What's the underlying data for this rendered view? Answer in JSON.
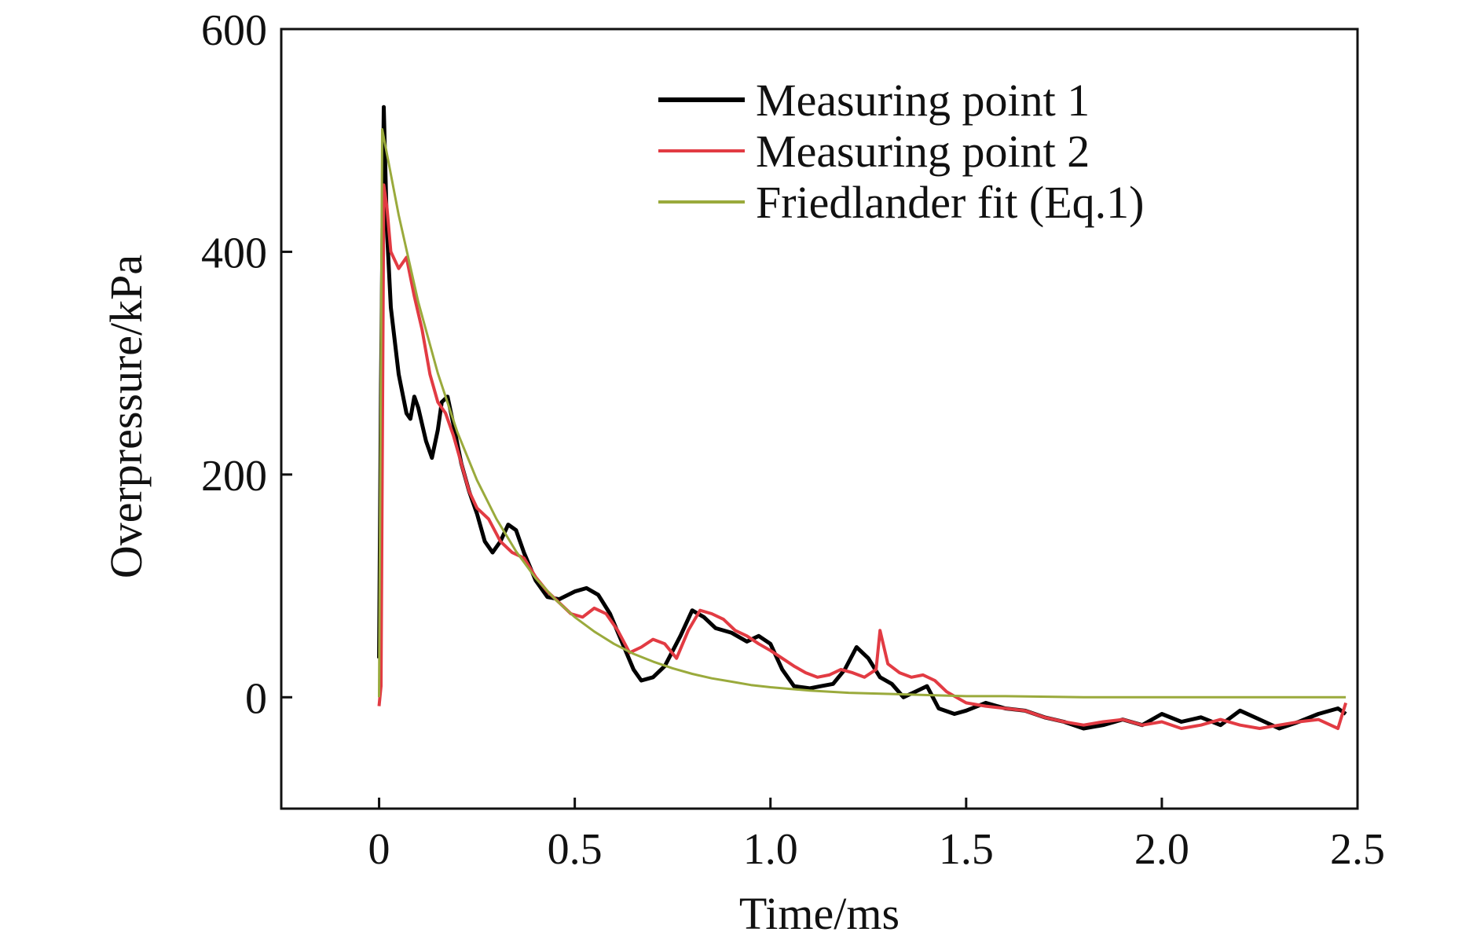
{
  "chart_data": {
    "type": "line",
    "title": "",
    "xlabel": "Time/ms",
    "ylabel": "Overpressure/kPa",
    "xlim": [
      -0.25,
      2.5
    ],
    "ylim": [
      -100,
      600
    ],
    "xticks": [
      0,
      0.5,
      1.0,
      1.5,
      2.0,
      2.5
    ],
    "xtick_labels": [
      "0",
      "0.5",
      "1.0",
      "1.5",
      "2.0",
      "2.5"
    ],
    "yticks": [
      0,
      200,
      400,
      600
    ],
    "ytick_labels": [
      "0",
      "200",
      "400",
      "600"
    ],
    "grid": false,
    "legend_position": "top-right",
    "series": [
      {
        "name": "Measuring point 1",
        "color": "#000000",
        "x": [
          0.0,
          0.005,
          0.012,
          0.02,
          0.03,
          0.05,
          0.07,
          0.08,
          0.09,
          0.1,
          0.12,
          0.135,
          0.15,
          0.16,
          0.175,
          0.19,
          0.21,
          0.23,
          0.25,
          0.27,
          0.29,
          0.31,
          0.33,
          0.35,
          0.37,
          0.4,
          0.43,
          0.46,
          0.5,
          0.53,
          0.56,
          0.59,
          0.62,
          0.65,
          0.67,
          0.7,
          0.73,
          0.77,
          0.8,
          0.83,
          0.86,
          0.9,
          0.94,
          0.97,
          1.0,
          1.03,
          1.06,
          1.1,
          1.13,
          1.16,
          1.19,
          1.22,
          1.25,
          1.28,
          1.31,
          1.34,
          1.37,
          1.4,
          1.43,
          1.47,
          1.5,
          1.55,
          1.6,
          1.65,
          1.7,
          1.75,
          1.8,
          1.85,
          1.9,
          1.95,
          2.0,
          2.05,
          2.1,
          2.15,
          2.2,
          2.25,
          2.3,
          2.35,
          2.4,
          2.45,
          2.47
        ],
        "y": [
          35,
          280,
          530,
          420,
          350,
          290,
          255,
          250,
          270,
          260,
          230,
          215,
          240,
          265,
          270,
          245,
          210,
          185,
          165,
          140,
          130,
          140,
          155,
          150,
          130,
          105,
          90,
          88,
          95,
          98,
          92,
          75,
          50,
          25,
          15,
          18,
          28,
          55,
          78,
          72,
          62,
          58,
          50,
          55,
          48,
          25,
          10,
          8,
          10,
          12,
          25,
          45,
          35,
          18,
          12,
          0,
          5,
          10,
          -10,
          -15,
          -12,
          -5,
          -10,
          -12,
          -18,
          -22,
          -28,
          -25,
          -20,
          -25,
          -15,
          -22,
          -18,
          -25,
          -12,
          -20,
          -28,
          -22,
          -15,
          -10,
          -15
        ]
      },
      {
        "name": "Measuring point 2",
        "color": "#e23b43",
        "x": [
          0.0,
          0.005,
          0.012,
          0.02,
          0.03,
          0.05,
          0.07,
          0.09,
          0.11,
          0.13,
          0.15,
          0.17,
          0.19,
          0.21,
          0.23,
          0.25,
          0.28,
          0.31,
          0.34,
          0.37,
          0.4,
          0.43,
          0.46,
          0.49,
          0.52,
          0.55,
          0.58,
          0.61,
          0.64,
          0.67,
          0.7,
          0.73,
          0.76,
          0.79,
          0.82,
          0.85,
          0.88,
          0.91,
          0.94,
          0.97,
          1.0,
          1.03,
          1.06,
          1.09,
          1.12,
          1.15,
          1.18,
          1.21,
          1.24,
          1.27,
          1.28,
          1.3,
          1.33,
          1.36,
          1.39,
          1.42,
          1.45,
          1.5,
          1.55,
          1.6,
          1.65,
          1.7,
          1.75,
          1.8,
          1.85,
          1.9,
          1.95,
          2.0,
          2.05,
          2.1,
          2.15,
          2.2,
          2.25,
          2.3,
          2.35,
          2.4,
          2.45,
          2.47
        ],
        "y": [
          -8,
          10,
          460,
          440,
          400,
          385,
          395,
          360,
          330,
          290,
          265,
          255,
          235,
          210,
          185,
          170,
          160,
          140,
          130,
          125,
          108,
          95,
          85,
          75,
          72,
          80,
          75,
          60,
          40,
          45,
          52,
          48,
          35,
          60,
          78,
          75,
          70,
          60,
          55,
          48,
          42,
          35,
          28,
          22,
          18,
          20,
          25,
          22,
          18,
          25,
          60,
          30,
          22,
          18,
          20,
          15,
          5,
          -5,
          -8,
          -10,
          -12,
          -18,
          -22,
          -25,
          -22,
          -20,
          -25,
          -22,
          -28,
          -25,
          -20,
          -25,
          -28,
          -25,
          -22,
          -20,
          -28,
          -5
        ]
      },
      {
        "name": "Friedlander fit (Eq.1)",
        "color": "#9aaa3c",
        "x": [
          0.0,
          0.008,
          0.05,
          0.1,
          0.15,
          0.2,
          0.25,
          0.3,
          0.35,
          0.4,
          0.45,
          0.5,
          0.55,
          0.6,
          0.65,
          0.7,
          0.75,
          0.8,
          0.85,
          0.9,
          0.95,
          1.0,
          1.1,
          1.2,
          1.3,
          1.4,
          1.5,
          1.6,
          1.8,
          2.0,
          2.2,
          2.47
        ],
        "y": [
          0,
          510,
          433,
          355,
          291,
          238,
          195,
          160,
          131,
          107,
          88,
          72,
          59,
          48,
          39,
          32,
          26,
          21,
          17,
          14,
          11,
          9,
          6,
          4,
          3,
          2,
          1,
          1,
          0,
          0,
          0,
          0
        ]
      }
    ]
  }
}
